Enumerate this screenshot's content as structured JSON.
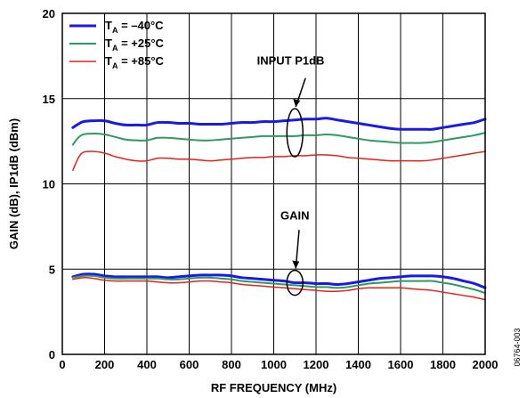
{
  "colors": {
    "series_ta_neg40": "#1a1ae6",
    "series_ta_pos25": "#2e9a5e",
    "series_ta_pos85": "#e8201c",
    "grid": "#000000"
  },
  "chart_data": {
    "type": "line",
    "xlabel": "RF FREQUENCY (MHz)",
    "ylabel": "GAIN (dB), IP1dB (dBm)",
    "xlim": [
      0,
      2000
    ],
    "ylim": [
      0,
      20
    ],
    "x_ticks": [
      "0",
      "200",
      "400",
      "600",
      "800",
      "1000",
      "1200",
      "1400",
      "1600",
      "1800",
      "2000"
    ],
    "y_ticks": [
      "0",
      "5",
      "10",
      "15",
      "20"
    ],
    "grid": true,
    "legend_placement": "top-left",
    "legend": [
      {
        "prefix": "T",
        "sub": "A",
        "suffix": " = –40°C",
        "color_key": "series_ta_neg40"
      },
      {
        "prefix": "T",
        "sub": "A",
        "suffix": " = +25°C",
        "color_key": "series_ta_pos25"
      },
      {
        "prefix": "T",
        "sub": "A",
        "suffix": " = +85°C",
        "color_key": "series_ta_pos85"
      }
    ],
    "annotations": [
      {
        "label": "INPUT P1dB",
        "near_x": 1100,
        "near_y": 13.0
      },
      {
        "label": "GAIN",
        "near_x": 1100,
        "near_y": 4.2
      }
    ],
    "figure_id": "06764-003",
    "series": [
      {
        "name": "INPUT P1dB T_A = –40°C",
        "color_key": "series_ta_neg40",
        "width": 3,
        "x": [
          50,
          75,
          100,
          150,
          200,
          250,
          300,
          350,
          400,
          450,
          500,
          550,
          600,
          650,
          700,
          750,
          800,
          850,
          900,
          950,
          1000,
          1050,
          1100,
          1150,
          1200,
          1250,
          1300,
          1350,
          1400,
          1450,
          1500,
          1550,
          1600,
          1650,
          1700,
          1750,
          1800,
          1850,
          1900,
          1950,
          2000
        ],
        "y": [
          13.3,
          13.5,
          13.65,
          13.7,
          13.7,
          13.55,
          13.45,
          13.45,
          13.45,
          13.6,
          13.6,
          13.55,
          13.55,
          13.5,
          13.5,
          13.5,
          13.55,
          13.6,
          13.6,
          13.65,
          13.65,
          13.7,
          13.75,
          13.8,
          13.8,
          13.85,
          13.75,
          13.65,
          13.55,
          13.45,
          13.35,
          13.25,
          13.2,
          13.2,
          13.2,
          13.2,
          13.3,
          13.4,
          13.5,
          13.6,
          13.8
        ]
      },
      {
        "name": "INPUT P1dB T_A = +25°C",
        "color_key": "series_ta_pos25",
        "width": 2,
        "x": [
          50,
          75,
          100,
          150,
          200,
          250,
          300,
          350,
          400,
          450,
          500,
          550,
          600,
          650,
          700,
          750,
          800,
          850,
          900,
          950,
          1000,
          1050,
          1100,
          1150,
          1200,
          1250,
          1300,
          1350,
          1400,
          1450,
          1500,
          1550,
          1600,
          1650,
          1700,
          1750,
          1800,
          1850,
          1900,
          1950,
          2000
        ],
        "y": [
          12.3,
          12.7,
          12.9,
          12.95,
          12.9,
          12.75,
          12.6,
          12.55,
          12.55,
          12.7,
          12.7,
          12.65,
          12.6,
          12.55,
          12.55,
          12.6,
          12.65,
          12.7,
          12.75,
          12.8,
          12.8,
          12.8,
          12.8,
          12.85,
          12.85,
          12.9,
          12.85,
          12.75,
          12.65,
          12.55,
          12.5,
          12.45,
          12.4,
          12.4,
          12.4,
          12.45,
          12.55,
          12.65,
          12.75,
          12.85,
          13.0
        ]
      },
      {
        "name": "INPUT P1dB T_A = +85°C",
        "color_key": "series_ta_pos85",
        "width": 1.5,
        "x": [
          50,
          75,
          100,
          150,
          200,
          250,
          300,
          350,
          400,
          450,
          500,
          550,
          600,
          650,
          700,
          750,
          800,
          850,
          900,
          950,
          1000,
          1050,
          1100,
          1150,
          1200,
          1250,
          1300,
          1350,
          1400,
          1450,
          1500,
          1550,
          1600,
          1650,
          1700,
          1750,
          1800,
          1850,
          1900,
          1950,
          2000
        ],
        "y": [
          10.8,
          11.5,
          11.85,
          11.9,
          11.8,
          11.6,
          11.45,
          11.35,
          11.35,
          11.5,
          11.5,
          11.45,
          11.45,
          11.4,
          11.35,
          11.4,
          11.45,
          11.5,
          11.55,
          11.55,
          11.6,
          11.6,
          11.65,
          11.65,
          11.7,
          11.7,
          11.65,
          11.55,
          11.5,
          11.45,
          11.4,
          11.35,
          11.35,
          11.35,
          11.35,
          11.4,
          11.5,
          11.6,
          11.7,
          11.8,
          11.9
        ]
      },
      {
        "name": "GAIN T_A = –40°C",
        "color_key": "series_ta_neg40",
        "width": 3,
        "x": [
          50,
          100,
          150,
          200,
          250,
          300,
          350,
          400,
          450,
          500,
          550,
          600,
          650,
          700,
          750,
          800,
          850,
          900,
          950,
          1000,
          1050,
          1100,
          1150,
          1200,
          1250,
          1300,
          1350,
          1400,
          1450,
          1500,
          1550,
          1600,
          1650,
          1700,
          1750,
          1800,
          1850,
          1900,
          1950,
          2000
        ],
        "y": [
          4.55,
          4.7,
          4.7,
          4.6,
          4.55,
          4.55,
          4.55,
          4.55,
          4.55,
          4.5,
          4.55,
          4.6,
          4.65,
          4.65,
          4.65,
          4.6,
          4.5,
          4.45,
          4.4,
          4.35,
          4.3,
          4.2,
          4.2,
          4.15,
          4.15,
          4.1,
          4.15,
          4.25,
          4.35,
          4.45,
          4.5,
          4.55,
          4.6,
          4.6,
          4.6,
          4.55,
          4.45,
          4.3,
          4.15,
          3.9
        ]
      },
      {
        "name": "GAIN T_A = +25°C",
        "color_key": "series_ta_pos25",
        "width": 2,
        "x": [
          50,
          100,
          150,
          200,
          250,
          300,
          350,
          400,
          450,
          500,
          550,
          600,
          650,
          700,
          750,
          800,
          850,
          900,
          950,
          1000,
          1050,
          1100,
          1150,
          1200,
          1250,
          1300,
          1350,
          1400,
          1450,
          1500,
          1550,
          1600,
          1650,
          1700,
          1750,
          1800,
          1850,
          1900,
          1950,
          2000
        ],
        "y": [
          4.5,
          4.6,
          4.6,
          4.5,
          4.45,
          4.45,
          4.45,
          4.45,
          4.45,
          4.4,
          4.4,
          4.45,
          4.5,
          4.5,
          4.45,
          4.4,
          4.3,
          4.25,
          4.2,
          4.15,
          4.1,
          4.05,
          4.0,
          3.95,
          3.95,
          3.9,
          3.95,
          4.05,
          4.15,
          4.2,
          4.25,
          4.3,
          4.3,
          4.3,
          4.3,
          4.2,
          4.1,
          3.95,
          3.8,
          3.6
        ]
      },
      {
        "name": "GAIN T_A = +85°C",
        "color_key": "series_ta_pos85",
        "width": 1.5,
        "x": [
          50,
          100,
          150,
          200,
          250,
          300,
          350,
          400,
          450,
          500,
          550,
          600,
          650,
          700,
          750,
          800,
          850,
          900,
          950,
          1000,
          1050,
          1100,
          1150,
          1200,
          1250,
          1300,
          1350,
          1400,
          1450,
          1500,
          1550,
          1600,
          1650,
          1700,
          1750,
          1800,
          1850,
          1900,
          1950,
          2000
        ],
        "y": [
          4.4,
          4.5,
          4.45,
          4.35,
          4.3,
          4.3,
          4.3,
          4.3,
          4.25,
          4.2,
          4.2,
          4.25,
          4.3,
          4.3,
          4.25,
          4.2,
          4.1,
          4.05,
          4.0,
          3.95,
          3.9,
          3.85,
          3.8,
          3.75,
          3.7,
          3.7,
          3.75,
          3.85,
          3.9,
          3.9,
          3.9,
          3.9,
          3.85,
          3.8,
          3.75,
          3.65,
          3.55,
          3.45,
          3.35,
          3.2
        ]
      }
    ]
  }
}
